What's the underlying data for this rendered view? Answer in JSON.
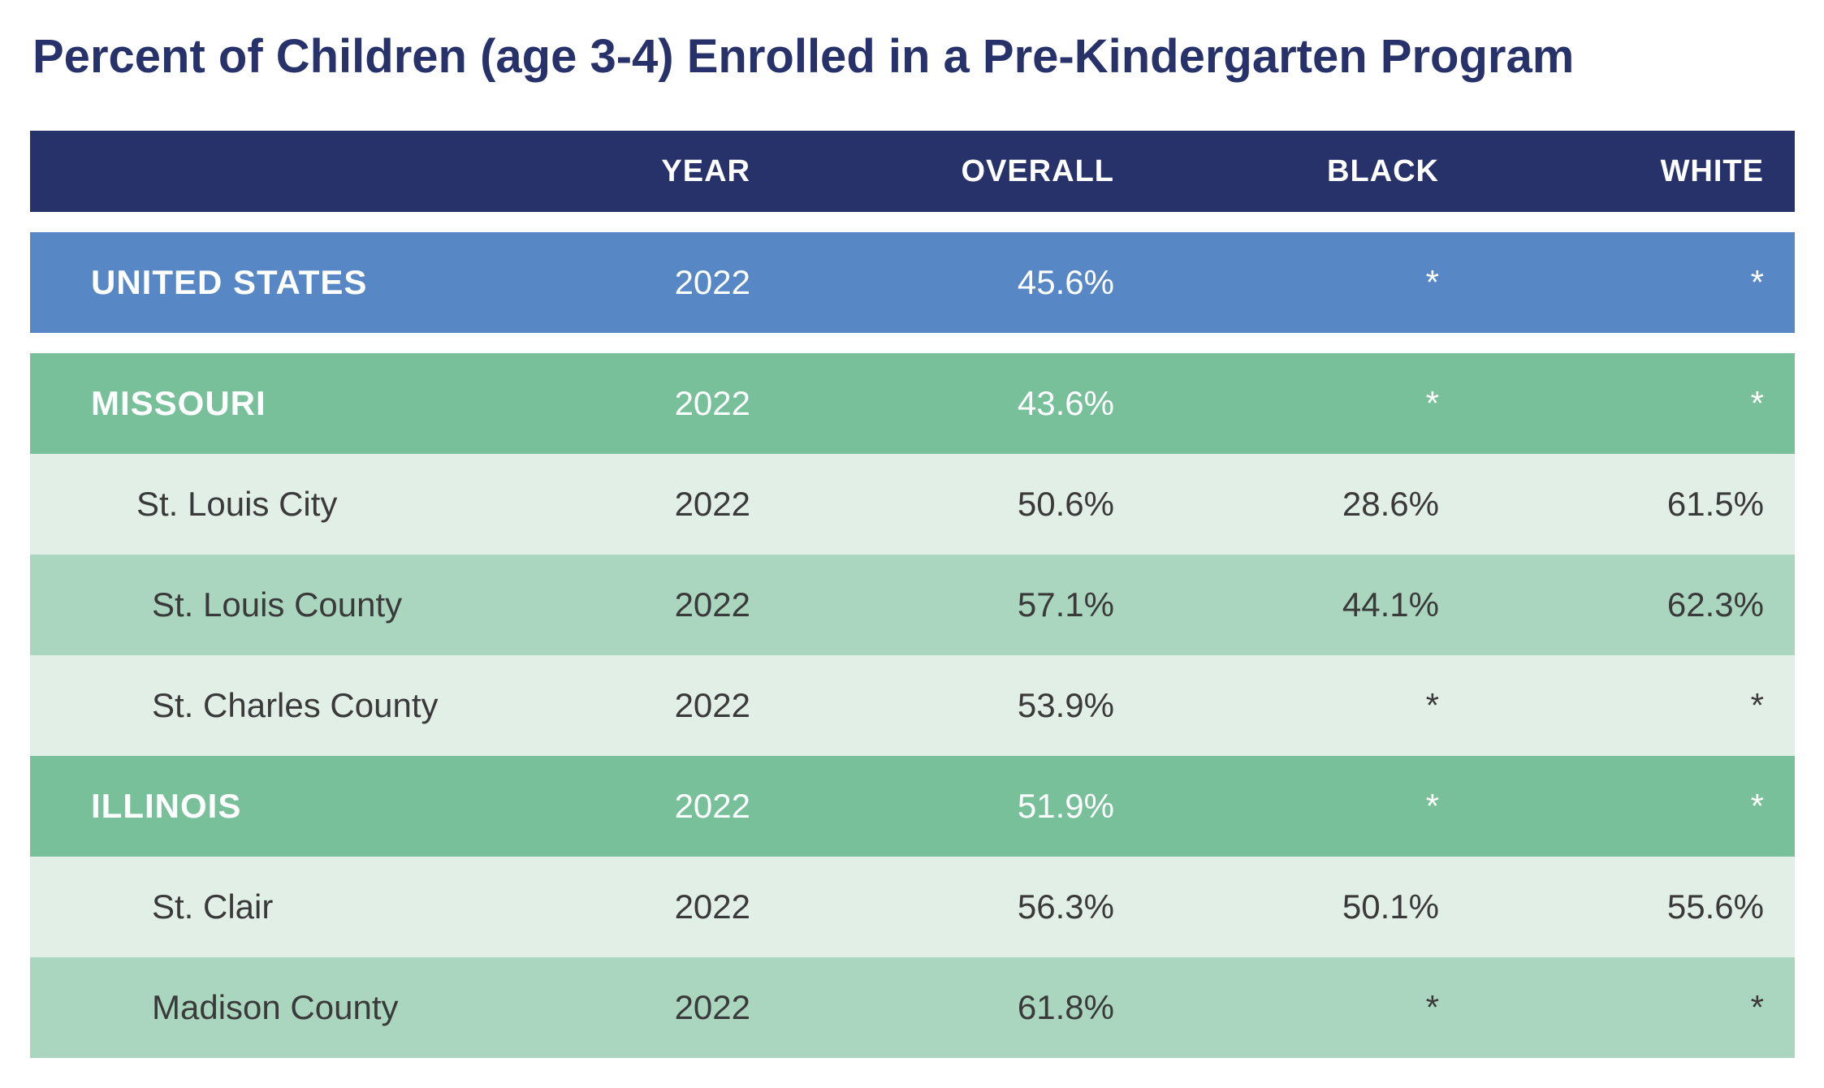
{
  "title": "Percent of Children (age 3-4) Enrolled in a Pre-Kindergarten Program",
  "chart_data": {
    "type": "table",
    "title": "Percent of Children (age 3-4) Enrolled in a Pre-Kindergarten Program",
    "columns": [
      "",
      "YEAR",
      "OVERALL",
      "BLACK",
      "WHITE"
    ],
    "rows": [
      {
        "name": "UNITED STATES",
        "year": "2022",
        "overall": "45.6%",
        "black": "*",
        "white": "*"
      },
      {
        "name": "MISSOURI",
        "year": "2022",
        "overall": "43.6%",
        "black": "*",
        "white": "*"
      },
      {
        "name": "St. Louis City",
        "year": "2022",
        "overall": "50.6%",
        "black": "28.6%",
        "white": "61.5%"
      },
      {
        "name": "St. Louis County",
        "year": "2022",
        "overall": "57.1%",
        "black": "44.1%",
        "white": "62.3%"
      },
      {
        "name": "St. Charles County",
        "year": "2022",
        "overall": "53.9%",
        "black": "*",
        "white": "*"
      },
      {
        "name": "ILLINOIS",
        "year": "2022",
        "overall": "51.9%",
        "black": "*",
        "white": "*"
      },
      {
        "name": "St. Clair",
        "year": "2022",
        "overall": "56.3%",
        "black": "50.1%",
        "white": "55.6%"
      },
      {
        "name": "Madison County",
        "year": "2022",
        "overall": "61.8%",
        "black": "*",
        "white": "*"
      }
    ]
  },
  "colors": {
    "title": "#27326a",
    "header_bg": "#27326a",
    "us_row": "#5787c5",
    "state_row": "#78c09a",
    "sub_row_light": "#e1efe6",
    "sub_row_dark": "#aad6bf"
  }
}
